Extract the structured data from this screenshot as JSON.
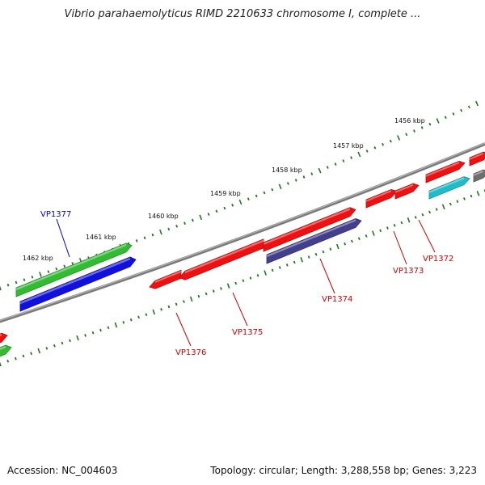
{
  "title": "Vibrio parahaemolyticus RIMD 2210633 chromosome I, complete ...",
  "footer": {
    "accession": "Accession: NC_004603",
    "stats": "Topology: circular; Length: 3,288,558 bp; Genes: 3,223"
  },
  "colors": {
    "backbone": "#7a7a7a",
    "tick": "#1e7a1e",
    "red": "#ee1111",
    "green": "#33bb33",
    "blue": "#1111dd",
    "navy": "#443f8c",
    "cyan": "#22bbcc",
    "gray": "#6e6e6e",
    "label_red": "#cc0000",
    "label_blue": "#0000cc"
  },
  "scale_labels": [
    "1456 kbp",
    "1457 kbp",
    "1458 kbp",
    "1459 kbp",
    "1460 kbp",
    "1461 kbp",
    "1462 kbp"
  ],
  "gene_labels": [
    {
      "id": "VP1377",
      "color": "blue"
    },
    {
      "id": "VP1376",
      "color": "red"
    },
    {
      "id": "VP1375",
      "color": "red"
    },
    {
      "id": "VP1374",
      "color": "red"
    },
    {
      "id": "VP1373",
      "color": "red"
    },
    {
      "id": "VP1372",
      "color": "red"
    }
  ]
}
